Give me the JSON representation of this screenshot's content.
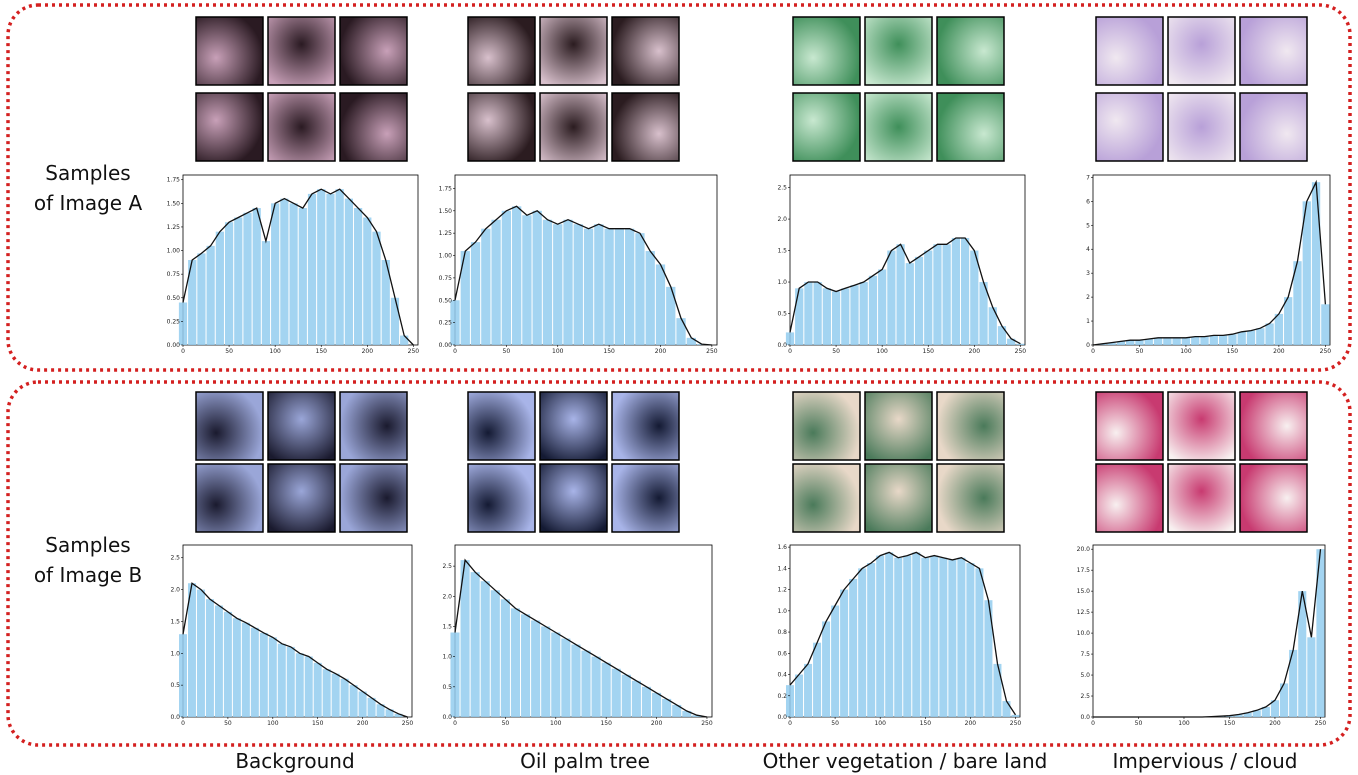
{
  "row_labels": [
    [
      "Samples",
      "of Image A"
    ],
    [
      "Samples",
      "of Image B"
    ]
  ],
  "column_labels": [
    "Background",
    "Oil palm tree",
    "Other vegetation / bare land",
    "Impervious / cloud"
  ],
  "chart_data": [
    {
      "type": "histogram",
      "bar_color": "#93cdee",
      "line_color": "#111111",
      "x": [
        0,
        10,
        20,
        30,
        40,
        50,
        60,
        70,
        80,
        90,
        100,
        110,
        120,
        130,
        140,
        150,
        160,
        170,
        180,
        190,
        200,
        210,
        220,
        230,
        240,
        250
      ],
      "values": [
        0.45,
        0.9,
        0.97,
        1.05,
        1.2,
        1.3,
        1.35,
        1.4,
        1.45,
        1.1,
        1.5,
        1.55,
        1.5,
        1.45,
        1.6,
        1.65,
        1.6,
        1.65,
        1.55,
        1.45,
        1.35,
        1.2,
        0.9,
        0.5,
        0.1,
        0.0
      ],
      "xlim": [
        0,
        255
      ],
      "xticks": [
        0,
        50,
        100,
        150,
        200,
        250
      ],
      "ylim": [
        0,
        1.8
      ],
      "yticks": [
        {
          "value": 0,
          "label": "0.00"
        },
        {
          "value": 0.25,
          "label": "0.25"
        },
        {
          "value": 0.5,
          "label": "0.50"
        },
        {
          "value": 0.75,
          "label": "0.75"
        },
        {
          "value": 1,
          "label": "1.00"
        },
        {
          "value": 1.25,
          "label": "1.25"
        },
        {
          "value": 1.5,
          "label": "1.50"
        },
        {
          "value": 1.75,
          "label": "1.75"
        }
      ]
    },
    {
      "type": "histogram",
      "bar_color": "#93cdee",
      "line_color": "#111111",
      "x": [
        0,
        10,
        20,
        30,
        40,
        50,
        60,
        70,
        80,
        90,
        100,
        110,
        120,
        130,
        140,
        150,
        160,
        170,
        180,
        190,
        200,
        210,
        220,
        230,
        240,
        250
      ],
      "values": [
        0.5,
        1.05,
        1.15,
        1.3,
        1.4,
        1.5,
        1.55,
        1.45,
        1.5,
        1.4,
        1.35,
        1.4,
        1.35,
        1.3,
        1.35,
        1.3,
        1.3,
        1.3,
        1.25,
        1.05,
        0.9,
        0.65,
        0.3,
        0.08,
        0.01,
        0.0
      ],
      "xlim": [
        0,
        255
      ],
      "xticks": [
        0,
        50,
        100,
        150,
        200,
        250
      ],
      "ylim": [
        0,
        1.9
      ],
      "yticks": [
        {
          "value": 0,
          "label": "0.00"
        },
        {
          "value": 0.25,
          "label": "0.25"
        },
        {
          "value": 0.5,
          "label": "0.50"
        },
        {
          "value": 0.75,
          "label": "0.75"
        },
        {
          "value": 1,
          "label": "1.00"
        },
        {
          "value": 1.25,
          "label": "1.25"
        },
        {
          "value": 1.5,
          "label": "1.50"
        },
        {
          "value": 1.75,
          "label": "1.75"
        }
      ]
    },
    {
      "type": "histogram",
      "bar_color": "#93cdee",
      "line_color": "#111111",
      "x": [
        0,
        10,
        20,
        30,
        40,
        50,
        60,
        70,
        80,
        90,
        100,
        110,
        120,
        130,
        140,
        150,
        160,
        170,
        180,
        190,
        200,
        210,
        220,
        230,
        240,
        250
      ],
      "values": [
        0.2,
        0.9,
        1.0,
        1.0,
        0.9,
        0.85,
        0.9,
        0.95,
        1.0,
        1.1,
        1.2,
        1.5,
        1.6,
        1.3,
        1.4,
        1.5,
        1.6,
        1.6,
        1.7,
        1.7,
        1.5,
        1.0,
        0.6,
        0.3,
        0.1,
        0.02
      ],
      "xlim": [
        0,
        255
      ],
      "xticks": [
        0,
        50,
        100,
        150,
        200,
        250
      ],
      "ylim": [
        0,
        2.7
      ],
      "yticks": [
        {
          "value": 0,
          "label": "0.0"
        },
        {
          "value": 0.5,
          "label": "0.5"
        },
        {
          "value": 1,
          "label": "1.0"
        },
        {
          "value": 1.5,
          "label": "1.5"
        },
        {
          "value": 2,
          "label": "2.0"
        },
        {
          "value": 2.5,
          "label": "2.5"
        }
      ]
    },
    {
      "type": "histogram",
      "bar_color": "#93cdee",
      "line_color": "#111111",
      "x": [
        0,
        10,
        20,
        30,
        40,
        50,
        60,
        70,
        80,
        90,
        100,
        110,
        120,
        130,
        140,
        150,
        160,
        170,
        180,
        190,
        200,
        210,
        220,
        230,
        240,
        250
      ],
      "values": [
        0,
        0.05,
        0.1,
        0.15,
        0.2,
        0.2,
        0.25,
        0.3,
        0.3,
        0.3,
        0.3,
        0.35,
        0.35,
        0.4,
        0.4,
        0.45,
        0.55,
        0.6,
        0.7,
        0.9,
        1.3,
        2.0,
        3.5,
        6.0,
        6.8,
        1.7
      ],
      "xlim": [
        0,
        255
      ],
      "xticks": [
        0,
        50,
        100,
        150,
        200,
        250
      ],
      "ylim": [
        0,
        7.1
      ],
      "yticks": [
        0,
        1,
        2,
        3,
        4,
        5,
        6,
        7
      ]
    },
    {
      "type": "histogram",
      "bar_color": "#93cdee",
      "line_color": "#111111",
      "x": [
        0,
        10,
        20,
        30,
        40,
        50,
        60,
        70,
        80,
        90,
        100,
        110,
        120,
        130,
        140,
        150,
        160,
        170,
        180,
        190,
        200,
        210,
        220,
        230,
        240,
        250
      ],
      "values": [
        1.3,
        2.1,
        2.0,
        1.85,
        1.75,
        1.65,
        1.55,
        1.48,
        1.4,
        1.32,
        1.25,
        1.15,
        1.1,
        1.0,
        0.95,
        0.85,
        0.75,
        0.68,
        0.6,
        0.5,
        0.4,
        0.3,
        0.2,
        0.12,
        0.05,
        0.0
      ],
      "xlim": [
        0,
        255
      ],
      "xticks": [
        0,
        50,
        100,
        150,
        200,
        250
      ],
      "ylim": [
        0,
        2.7
      ],
      "yticks": [
        {
          "value": 0,
          "label": "0.0"
        },
        {
          "value": 0.5,
          "label": "0.5"
        },
        {
          "value": 1,
          "label": "1.0"
        },
        {
          "value": 1.5,
          "label": "1.5"
        },
        {
          "value": 2,
          "label": "2.0"
        },
        {
          "value": 2.5,
          "label": "2.5"
        }
      ]
    },
    {
      "type": "histogram",
      "bar_color": "#93cdee",
      "line_color": "#111111",
      "x": [
        0,
        10,
        20,
        30,
        40,
        50,
        60,
        70,
        80,
        90,
        100,
        110,
        120,
        130,
        140,
        150,
        160,
        170,
        180,
        190,
        200,
        210,
        220,
        230,
        240,
        250
      ],
      "values": [
        1.4,
        2.6,
        2.4,
        2.25,
        2.1,
        1.95,
        1.8,
        1.7,
        1.6,
        1.5,
        1.4,
        1.3,
        1.2,
        1.1,
        1.0,
        0.9,
        0.8,
        0.7,
        0.6,
        0.5,
        0.4,
        0.3,
        0.2,
        0.1,
        0.03,
        0.0
      ],
      "xlim": [
        0,
        255
      ],
      "xticks": [
        0,
        50,
        100,
        150,
        200,
        250
      ],
      "ylim": [
        0,
        2.85
      ],
      "yticks": [
        {
          "value": 0,
          "label": "0.0"
        },
        {
          "value": 0.5,
          "label": "0.5"
        },
        {
          "value": 1,
          "label": "1.0"
        },
        {
          "value": 1.5,
          "label": "1.5"
        },
        {
          "value": 2,
          "label": "2.0"
        },
        {
          "value": 2.5,
          "label": "2.5"
        }
      ]
    },
    {
      "type": "histogram",
      "bar_color": "#93cdee",
      "line_color": "#111111",
      "x": [
        0,
        10,
        20,
        30,
        40,
        50,
        60,
        70,
        80,
        90,
        100,
        110,
        120,
        130,
        140,
        150,
        160,
        170,
        180,
        190,
        200,
        210,
        220,
        230,
        240,
        250
      ],
      "values": [
        0.3,
        0.4,
        0.5,
        0.7,
        0.9,
        1.05,
        1.2,
        1.3,
        1.4,
        1.45,
        1.52,
        1.55,
        1.5,
        1.52,
        1.55,
        1.5,
        1.52,
        1.5,
        1.48,
        1.5,
        1.45,
        1.4,
        1.1,
        0.5,
        0.15,
        0.02
      ],
      "xlim": [
        0,
        255
      ],
      "xticks": [
        0,
        50,
        100,
        150,
        200,
        250
      ],
      "ylim": [
        0,
        1.62
      ],
      "yticks": [
        {
          "value": 0,
          "label": "0.0"
        },
        {
          "value": 0.2,
          "label": "0.2"
        },
        {
          "value": 0.4,
          "label": "0.4"
        },
        {
          "value": 0.6,
          "label": "0.6"
        },
        {
          "value": 0.8,
          "label": "0.8"
        },
        {
          "value": 1,
          "label": "1.0"
        },
        {
          "value": 1.2,
          "label": "1.2"
        },
        {
          "value": 1.4,
          "label": "1.4"
        },
        {
          "value": 1.6,
          "label": "1.6"
        }
      ]
    },
    {
      "type": "histogram",
      "bar_color": "#93cdee",
      "line_color": "#111111",
      "x": [
        0,
        10,
        20,
        30,
        40,
        50,
        60,
        70,
        80,
        90,
        100,
        110,
        120,
        130,
        140,
        150,
        160,
        170,
        180,
        190,
        200,
        210,
        220,
        230,
        240,
        250
      ],
      "values": [
        0,
        0,
        0,
        0,
        0,
        0,
        0,
        0,
        0,
        0,
        0,
        0,
        0,
        0.05,
        0.1,
        0.15,
        0.3,
        0.5,
        0.8,
        1.2,
        2.0,
        4.0,
        8.0,
        15.0,
        9.5,
        20.0
      ],
      "xlim": [
        0,
        255
      ],
      "xticks": [
        0,
        50,
        100,
        150,
        200,
        250
      ],
      "ylim": [
        0,
        20.5
      ],
      "yticks": [
        {
          "value": 0,
          "label": "0.0"
        },
        {
          "value": 2.5,
          "label": "2.5"
        },
        {
          "value": 5,
          "label": "5.0"
        },
        {
          "value": 7.5,
          "label": "7.5"
        },
        {
          "value": 10,
          "label": "10.0"
        },
        {
          "value": 12.5,
          "label": "12.5"
        },
        {
          "value": 15,
          "label": "15.0"
        },
        {
          "value": 17.5,
          "label": "17.5"
        },
        {
          "value": 20,
          "label": "20.0"
        }
      ]
    }
  ]
}
